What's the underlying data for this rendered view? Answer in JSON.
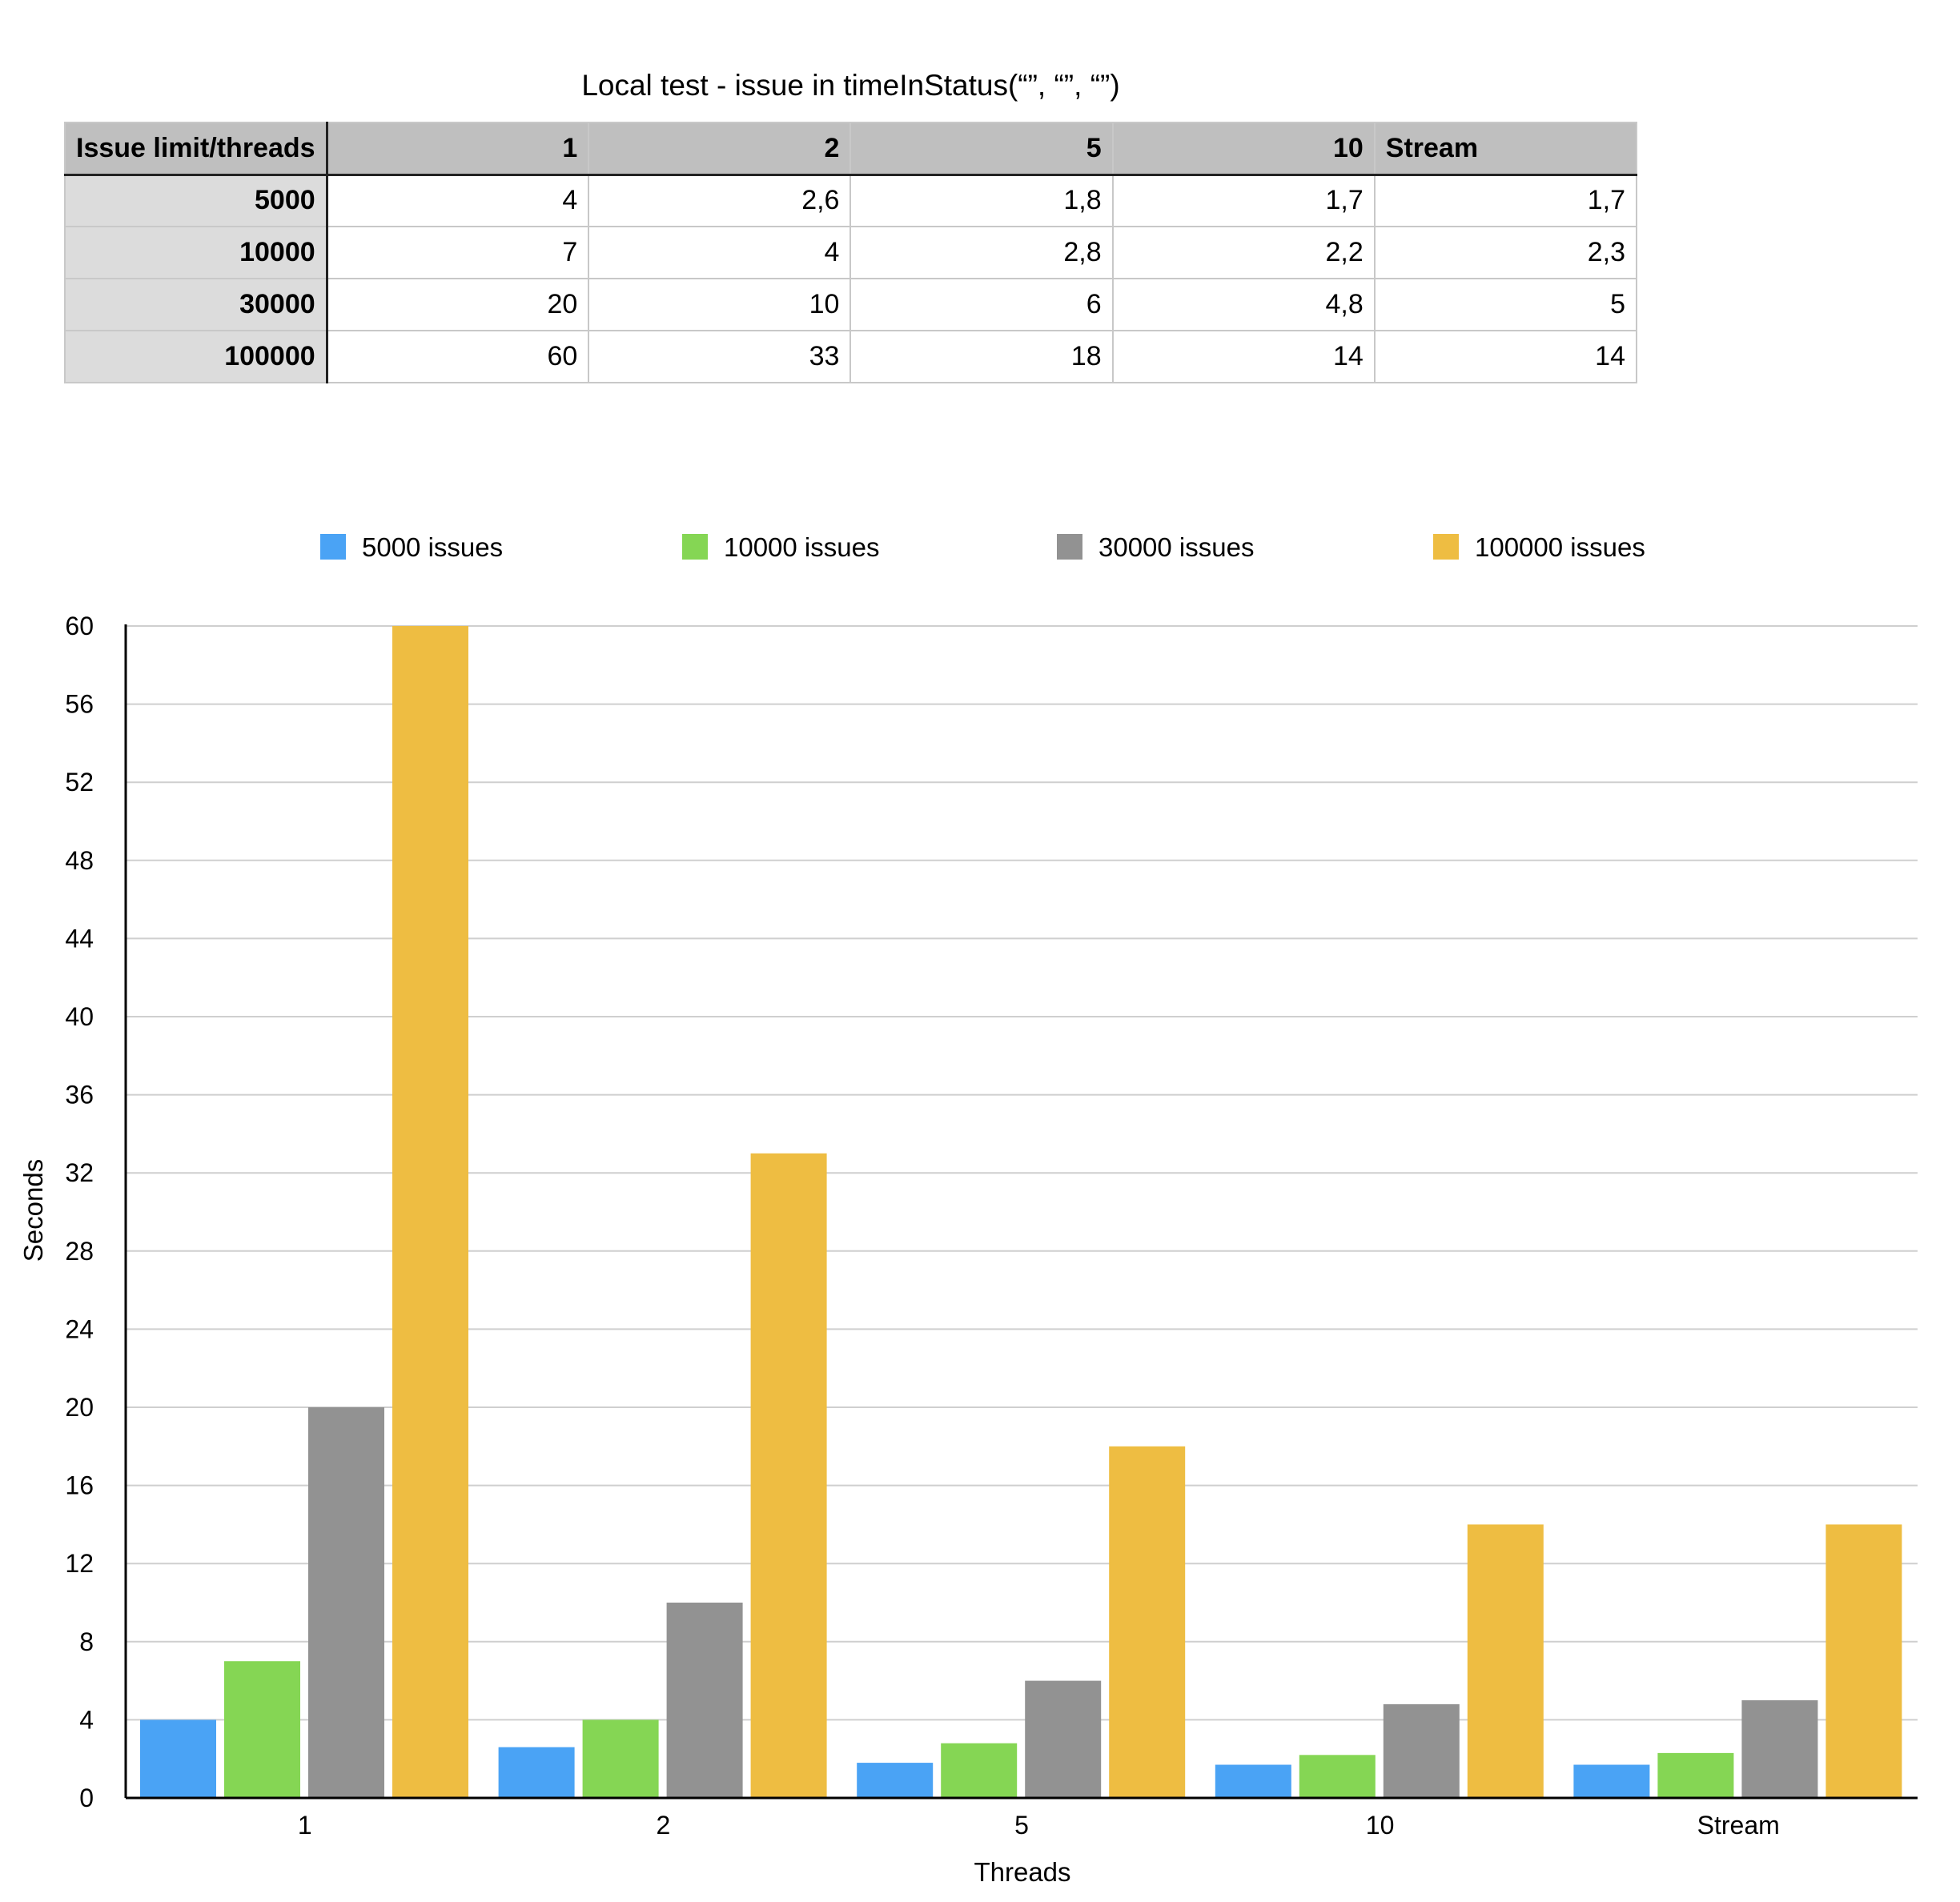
{
  "table": {
    "title": "Local test - issue in timeInStatus(“”, “”, “”)",
    "corner": "Issue limit/threads",
    "columns": [
      "1",
      "2",
      "5",
      "10",
      "Stream"
    ],
    "rows": [
      {
        "label": "5000",
        "cells": [
          "4",
          "2,6",
          "1,8",
          "1,7",
          "1,7"
        ]
      },
      {
        "label": "10000",
        "cells": [
          "7",
          "4",
          "2,8",
          "2,2",
          "2,3"
        ]
      },
      {
        "label": "30000",
        "cells": [
          "20",
          "10",
          "6",
          "4,8",
          "5"
        ]
      },
      {
        "label": "100000",
        "cells": [
          "60",
          "33",
          "18",
          "14",
          "14"
        ]
      }
    ]
  },
  "chart_data": {
    "type": "bar",
    "categories": [
      "1",
      "2",
      "5",
      "10",
      "Stream"
    ],
    "series": [
      {
        "name": "5000 issues",
        "color": "#4aa3f5",
        "values": [
          4,
          2.6,
          1.8,
          1.7,
          1.7
        ]
      },
      {
        "name": "10000 issues",
        "color": "#85d654",
        "values": [
          7,
          4,
          2.8,
          2.2,
          2.3
        ]
      },
      {
        "name": "30000 issues",
        "color": "#929292",
        "values": [
          20,
          10,
          6,
          4.8,
          5
        ]
      },
      {
        "name": "100000 issues",
        "color": "#eebd42",
        "values": [
          60,
          33,
          18,
          14,
          14
        ]
      }
    ],
    "xlabel": "Threads",
    "ylabel": "Seconds",
    "ylim": [
      0,
      60
    ],
    "yticks": [
      0,
      4,
      8,
      12,
      16,
      20,
      24,
      28,
      32,
      36,
      40,
      44,
      48,
      52,
      56,
      60
    ],
    "grid": true,
    "legend": "top"
  }
}
